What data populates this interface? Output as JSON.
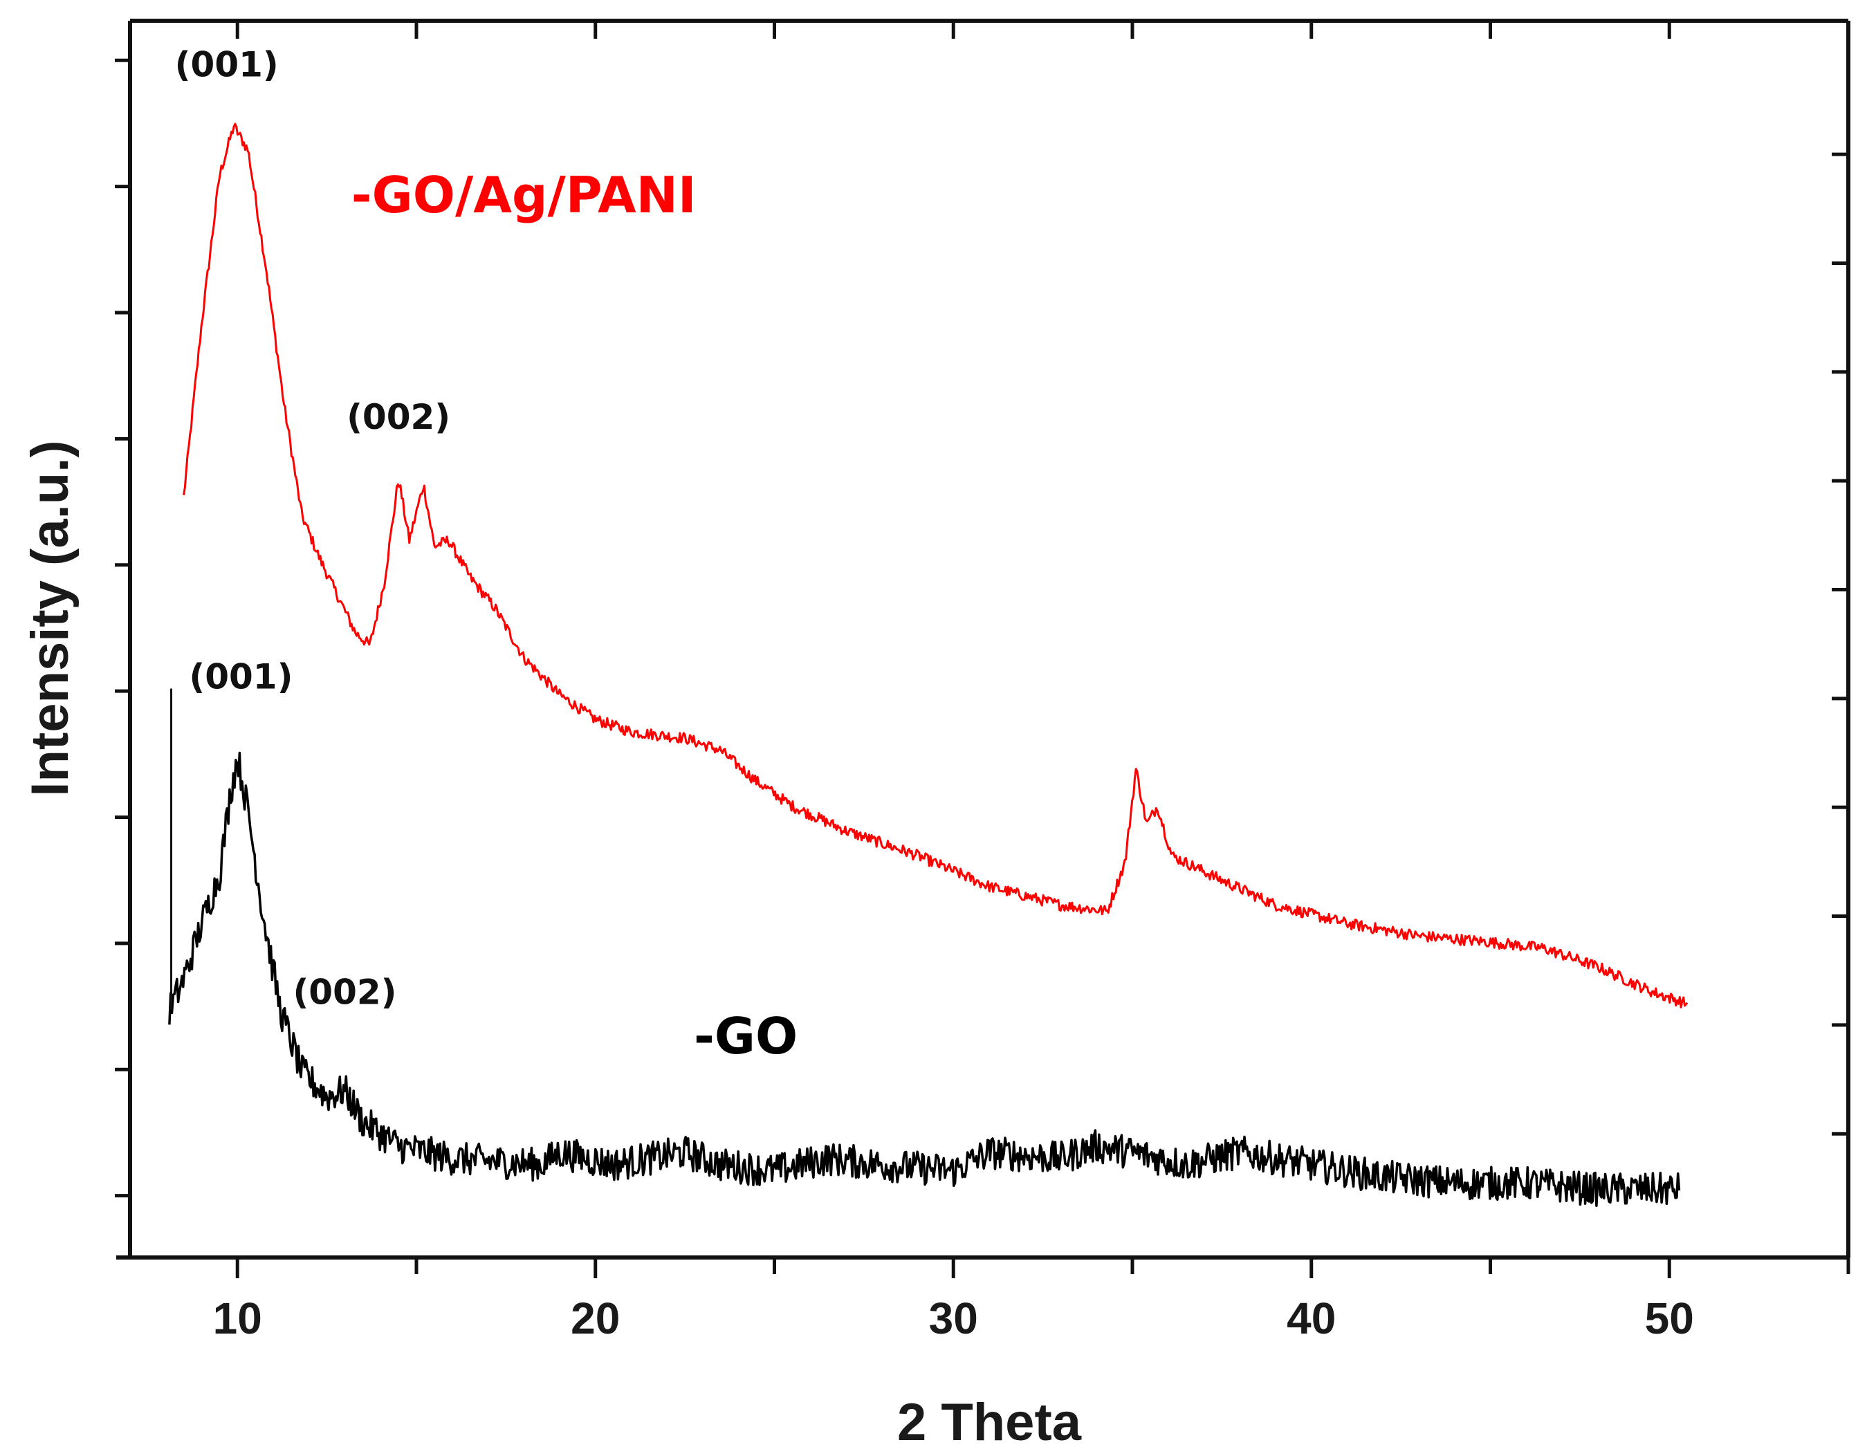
{
  "chart_data": {
    "type": "line",
    "title": "",
    "xlabel": "2 Theta",
    "ylabel": "Intensity (a.u.)",
    "xlim": [
      7,
      55
    ],
    "ylim": [
      0,
      100
    ],
    "x_ticks": [
      10,
      20,
      30,
      40,
      50
    ],
    "y_units": "arbitrary",
    "series": [
      {
        "name": "-GO/Ag/PANI",
        "color": "#ff0000",
        "points": [
          [
            8.5,
            61.5
          ],
          [
            9.0,
            75.5
          ],
          [
            9.5,
            87.5
          ],
          [
            9.9,
            91.5
          ],
          [
            10.3,
            89.5
          ],
          [
            10.8,
            80.0
          ],
          [
            11.3,
            69.0
          ],
          [
            11.8,
            60.0
          ],
          [
            12.3,
            56.5
          ],
          [
            12.8,
            53.5
          ],
          [
            13.3,
            50.5
          ],
          [
            13.7,
            49.5
          ],
          [
            14.1,
            54.5
          ],
          [
            14.5,
            63.0
          ],
          [
            14.8,
            58.0
          ],
          [
            15.2,
            62.5
          ],
          [
            15.5,
            57.5
          ],
          [
            15.9,
            58.0
          ],
          [
            16.5,
            55.0
          ],
          [
            17.2,
            52.5
          ],
          [
            18.0,
            48.5
          ],
          [
            19.0,
            45.5
          ],
          [
            20.0,
            43.5
          ],
          [
            21.0,
            42.5
          ],
          [
            22.5,
            42.0
          ],
          [
            23.5,
            41.0
          ],
          [
            24.5,
            38.5
          ],
          [
            25.5,
            36.5
          ],
          [
            27.0,
            34.5
          ],
          [
            29.0,
            32.5
          ],
          [
            31.0,
            30.0
          ],
          [
            33.0,
            28.5
          ],
          [
            34.3,
            28.0
          ],
          [
            34.8,
            32.0
          ],
          [
            35.1,
            39.5
          ],
          [
            35.4,
            35.0
          ],
          [
            35.7,
            36.5
          ],
          [
            36.1,
            32.5
          ],
          [
            37.5,
            30.5
          ],
          [
            39.0,
            28.5
          ],
          [
            41.0,
            27.0
          ],
          [
            43.0,
            26.0
          ],
          [
            45.0,
            25.5
          ],
          [
            46.5,
            25.0
          ],
          [
            48.0,
            23.5
          ],
          [
            49.5,
            21.5
          ],
          [
            50.5,
            20.5
          ]
        ]
      },
      {
        "name": "-GO",
        "color": "#000000",
        "points": [
          [
            8.1,
            20.0
          ],
          [
            8.5,
            22.5
          ],
          [
            9.0,
            27.0
          ],
          [
            9.5,
            31.0
          ],
          [
            9.8,
            37.5
          ],
          [
            10.0,
            40.5
          ],
          [
            10.3,
            36.0
          ],
          [
            10.7,
            28.0
          ],
          [
            11.2,
            20.0
          ],
          [
            11.8,
            15.0
          ],
          [
            12.5,
            13.0
          ],
          [
            13.0,
            13.5
          ],
          [
            13.5,
            11.0
          ],
          [
            14.5,
            9.0
          ],
          [
            16.0,
            8.0
          ],
          [
            18.5,
            7.5
          ],
          [
            19.0,
            8.5
          ],
          [
            20.5,
            7.5
          ],
          [
            22.5,
            8.5
          ],
          [
            23.5,
            7.5
          ],
          [
            25.0,
            7.0
          ],
          [
            26.5,
            8.0
          ],
          [
            28.0,
            7.5
          ],
          [
            30.0,
            7.0
          ],
          [
            31.0,
            8.5
          ],
          [
            33.0,
            8.0
          ],
          [
            34.0,
            9.0
          ],
          [
            35.0,
            8.5
          ],
          [
            36.5,
            7.5
          ],
          [
            38.0,
            8.5
          ],
          [
            40.0,
            7.5
          ],
          [
            42.0,
            6.5
          ],
          [
            44.0,
            6.0
          ],
          [
            46.0,
            6.0
          ],
          [
            48.0,
            5.5
          ],
          [
            50.3,
            5.5
          ]
        ]
      }
    ],
    "annotations": [
      {
        "text": "(001)",
        "x": 9.7,
        "y": 95.5,
        "series": "-GO/Ag/PANI"
      },
      {
        "text": "(002)",
        "x": 14.5,
        "y": 67.0,
        "series": "-GO/Ag/PANI"
      },
      {
        "text": "(001)",
        "x": 10.1,
        "y": 46.0,
        "series": "-GO"
      },
      {
        "text": "(002)",
        "x": 13.0,
        "y": 20.5,
        "series": "-GO"
      }
    ],
    "series_labels": [
      {
        "text": "-GO/Ag/PANI",
        "x": 18.0,
        "y": 84.5,
        "color": "#ff0000"
      },
      {
        "text": "-GO",
        "x": 24.2,
        "y": 16.5,
        "color": "#000000"
      }
    ]
  }
}
